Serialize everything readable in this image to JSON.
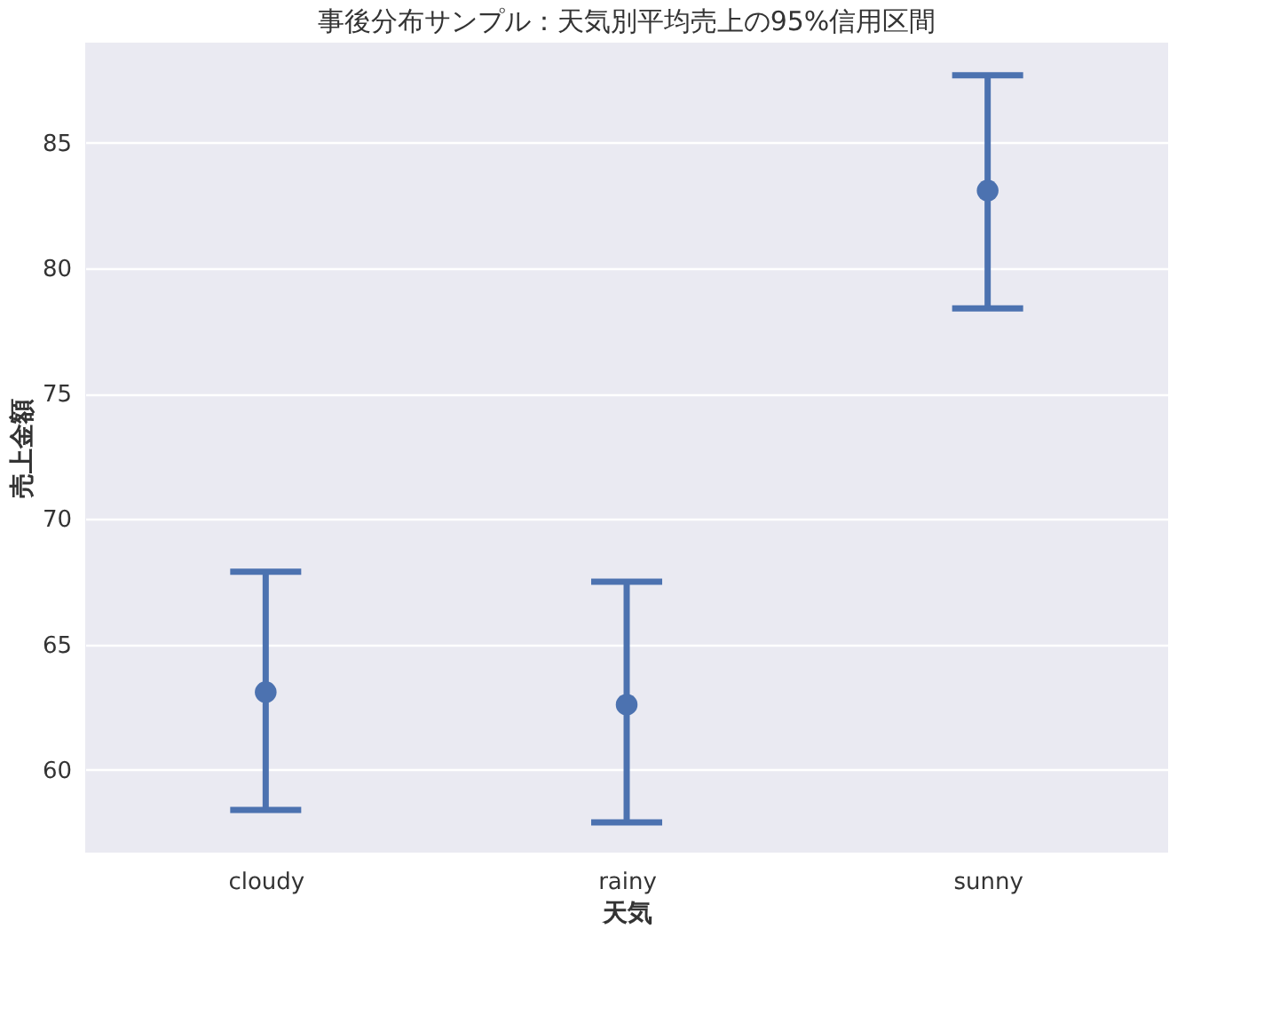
{
  "chart_data": {
    "type": "scatter",
    "title": "事後分布サンプル：天気別平均売上の95%信用区間",
    "xlabel": "天気",
    "ylabel": "売上金額",
    "categories": [
      "cloudy",
      "rainy",
      "sunny"
    ],
    "color": "#4c72b0",
    "values": [
      63.1,
      62.6,
      83.1
    ],
    "errors": [
      [
        58.4,
        67.9
      ],
      [
        57.9,
        67.5
      ],
      [
        78.4,
        87.7
      ]
    ],
    "ylim": [
      56.7,
      89.0
    ],
    "yticks": [
      60,
      65,
      70,
      75,
      80,
      85
    ],
    "grid": "y",
    "marker": "circle"
  }
}
